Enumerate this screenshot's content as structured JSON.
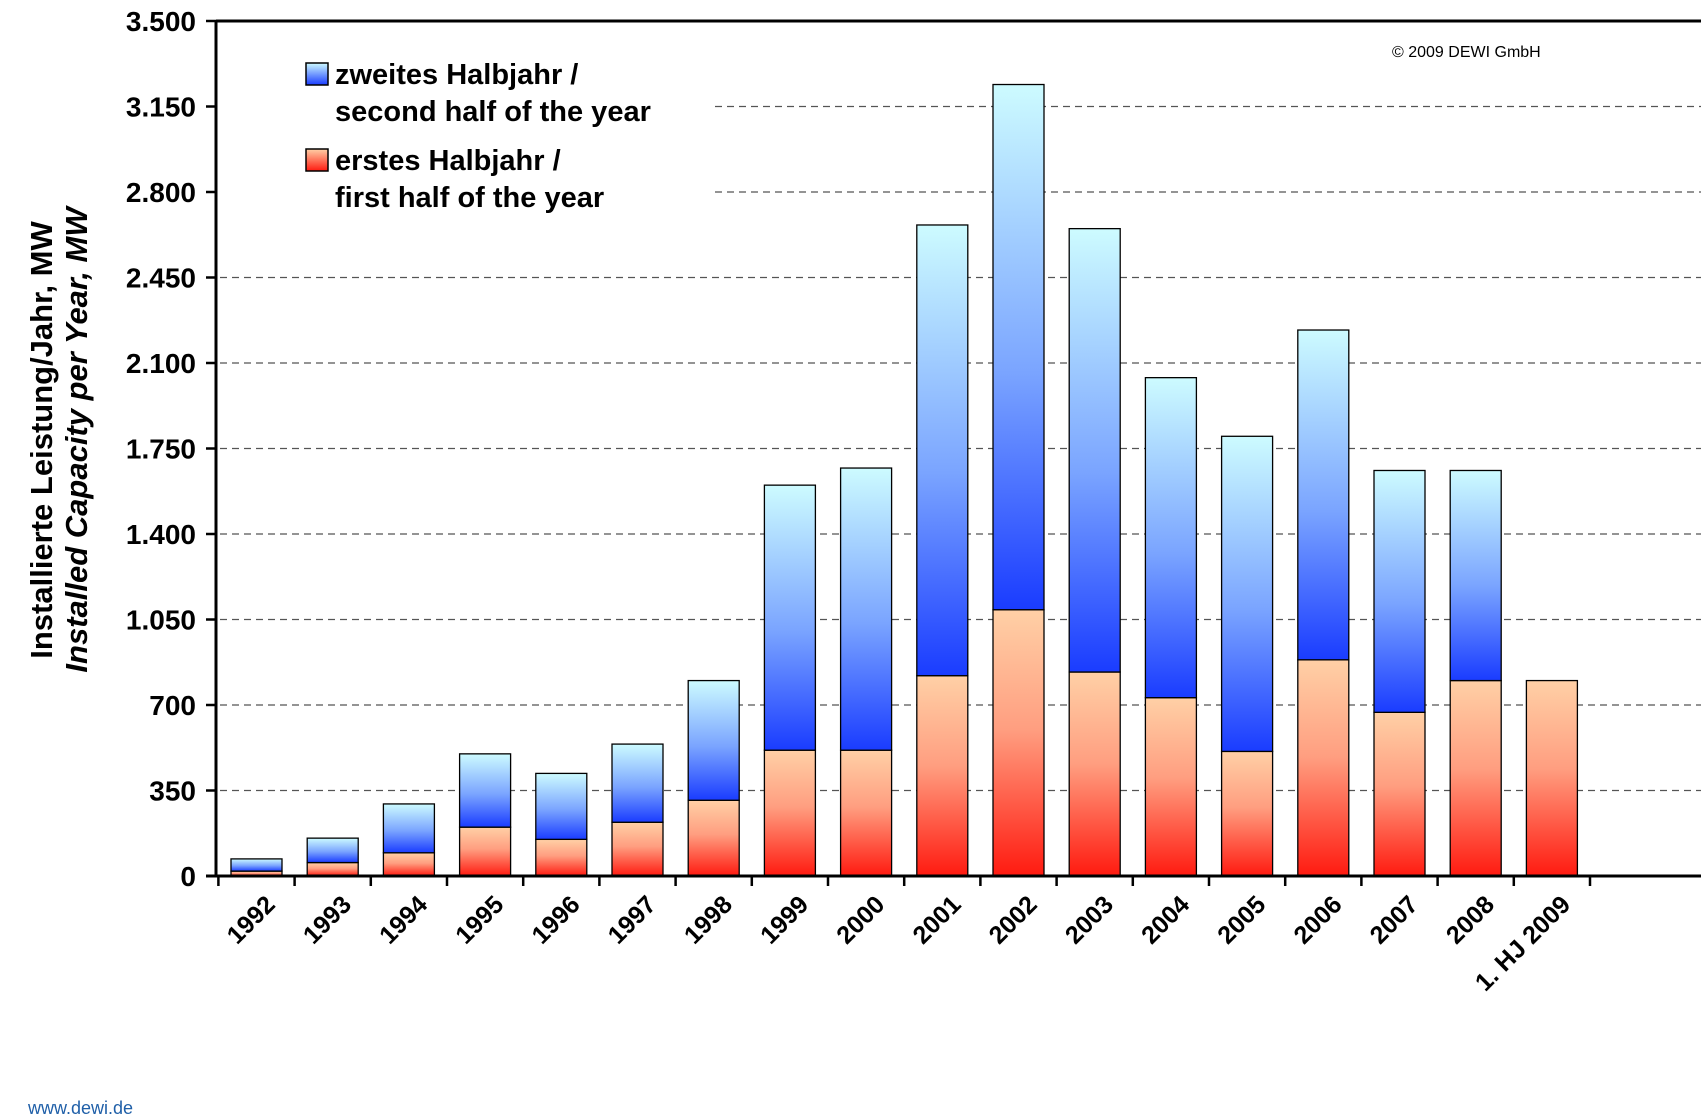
{
  "chart_data": {
    "type": "bar",
    "stacked": true,
    "categories": [
      "1992",
      "1993",
      "1994",
      "1995",
      "1996",
      "1997",
      "1998",
      "1999",
      "2000",
      "2001",
      "2002",
      "2003",
      "2004",
      "2005",
      "2006",
      "2007",
      "2008",
      "1. HJ 2009"
    ],
    "series": [
      {
        "name": "erstes Halbjahr / first half of the year",
        "color": "#ff2a1a",
        "values": [
          20,
          55,
          95,
          200,
          150,
          220,
          310,
          515,
          515,
          820,
          1090,
          835,
          730,
          510,
          885,
          670,
          800,
          800
        ]
      },
      {
        "name": "zweites Halbjahr / second half of the year",
        "color": "#1a3cff",
        "values": [
          50,
          100,
          200,
          300,
          270,
          320,
          490,
          1085,
          1155,
          1845,
          2150,
          1815,
          1310,
          1290,
          1350,
          990,
          860,
          0
        ]
      }
    ],
    "legend": {
      "items": [
        {
          "line1": "zweites Halbjahr /",
          "line2": "second half of the year"
        },
        {
          "line1": "erstes Halbjahr /",
          "line2": "first half of the year"
        }
      ],
      "position": "top-left"
    },
    "ylabel": "Installierte Leistung/Jahr, MW",
    "ylabel2": "Installed Capacity per Year, MW",
    "ylim": [
      0,
      3500
    ],
    "yticks": [
      0,
      350,
      700,
      1050,
      1400,
      1750,
      2100,
      2450,
      2800,
      3150,
      3500
    ],
    "ytick_labels": [
      "0",
      "350",
      "700",
      "1.050",
      "1.400",
      "1.750",
      "2.100",
      "2.450",
      "2.800",
      "3.150",
      "3.500"
    ],
    "grid": "horizontal dashed",
    "copyright": "© 2009 DEWI GmbH",
    "website": "www.dewi.de"
  }
}
